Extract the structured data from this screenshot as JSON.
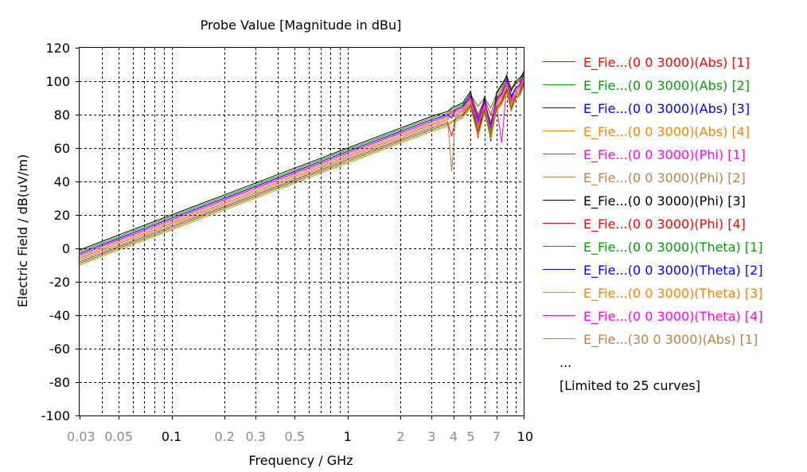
{
  "chart_data": {
    "type": "line",
    "title": "Probe Value [Magnitude in dBu]",
    "xlabel": "Frequency / GHz",
    "ylabel": "Electric Field / dB(uV/m)",
    "x_scale": "log",
    "xlim": [
      0.03,
      10
    ],
    "ylim": [
      -100,
      120
    ],
    "grid": true,
    "legend_position": "right",
    "y_ticks": [
      120,
      100,
      80,
      60,
      40,
      20,
      0,
      -20,
      -40,
      -60,
      -80,
      -100
    ],
    "x_ticks": [
      {
        "value": 0.03,
        "label": "0.03",
        "major": false
      },
      {
        "value": 0.05,
        "label": "0.05",
        "major": false
      },
      {
        "value": 0.1,
        "label": "0.1",
        "major": true
      },
      {
        "value": 0.2,
        "label": "0.2",
        "major": false
      },
      {
        "value": 0.3,
        "label": "0.3",
        "major": false
      },
      {
        "value": 0.5,
        "label": "0.5",
        "major": false
      },
      {
        "value": 1,
        "label": "1",
        "major": true
      },
      {
        "value": 2,
        "label": "2",
        "major": false
      },
      {
        "value": 3,
        "label": "3",
        "major": false
      },
      {
        "value": 4,
        "label": "4",
        "major": false
      },
      {
        "value": 5,
        "label": "5",
        "major": false
      },
      {
        "value": 7,
        "label": "7",
        "major": false
      },
      {
        "value": 10,
        "label": "10",
        "major": true
      }
    ],
    "x_minor_gridlines": [
      0.04,
      0.06,
      0.07,
      0.08,
      0.09,
      0.4,
      0.6,
      0.7,
      0.8,
      0.9,
      6,
      8,
      9
    ],
    "x": [
      0.03,
      0.05,
      0.1,
      0.2,
      0.5,
      1,
      2,
      3,
      3.7,
      3.9,
      4.1,
      4.5,
      5,
      5.5,
      6,
      6.5,
      7,
      7.5,
      8,
      8.5,
      9,
      9.5,
      10
    ],
    "series": [
      {
        "name": "E_Fie...(0 0 3000)(Abs) [1]",
        "color": "#ff0000",
        "values": [
          -3,
          6,
          18,
          30,
          46,
          58,
          70,
          77,
          80,
          82,
          83,
          85,
          93,
          80,
          89,
          80,
          90,
          95,
          104,
          95,
          98,
          100,
          106
        ]
      },
      {
        "name": "E_Fie...(0 0 3000)(Abs) [2]",
        "color": "#00a000",
        "values": [
          -2,
          7,
          19,
          31,
          47,
          59,
          71,
          78,
          81,
          83,
          84,
          86,
          92,
          85,
          90,
          84,
          92,
          97,
          102,
          96,
          99,
          101,
          104
        ]
      },
      {
        "name": "E_Fie...(0 0 3000)(Abs) [3]",
        "color": "#0000ff",
        "values": [
          -4,
          5,
          17,
          29,
          45,
          57,
          69,
          76,
          79,
          81,
          82,
          84,
          90,
          76,
          87,
          72,
          88,
          92,
          100,
          90,
          95,
          97,
          103
        ]
      },
      {
        "name": "E_Fie...(0 0 3000)(Abs) [4]",
        "color": "#ff8000",
        "values": [
          -5,
          4,
          16,
          28,
          44,
          56,
          68,
          75,
          78,
          80,
          81,
          83,
          89,
          78,
          86,
          76,
          87,
          91,
          99,
          92,
          94,
          96,
          102
        ]
      },
      {
        "name": "E_Fie...(0 0 3000)(Phi) [1]",
        "color": "#ff00ff",
        "values": [
          -6,
          3,
          15,
          27,
          43,
          55,
          67,
          74,
          77,
          79,
          80,
          82,
          88,
          74,
          85,
          70,
          86,
          63,
          97,
          88,
          93,
          95,
          101
        ]
      },
      {
        "name": "E_Fie...(0 0 3000)(Phi) [2]",
        "color": "#c08040",
        "values": [
          -7,
          2,
          14,
          26,
          42,
          54,
          66,
          73,
          76,
          46,
          79,
          81,
          87,
          72,
          84,
          68,
          85,
          89,
          96,
          86,
          92,
          94,
          100
        ]
      },
      {
        "name": "E_Fie...(0 0 3000)(Phi) [3]",
        "color": "#000000",
        "values": [
          -1,
          8,
          20,
          32,
          48,
          60,
          72,
          79,
          82,
          84,
          85,
          87,
          94,
          66,
          91,
          64,
          93,
          98,
          103,
          94,
          100,
          102,
          105
        ]
      },
      {
        "name": "E_Fie...(0 0 3000)(Phi) [4]",
        "color": "#ff0000",
        "values": [
          -8,
          1,
          13,
          25,
          41,
          53,
          65,
          72,
          75,
          67,
          78,
          80,
          86,
          70,
          83,
          66,
          84,
          88,
          95,
          84,
          91,
          93,
          99
        ]
      },
      {
        "name": "E_Fie...(0 0 3000)(Theta) [1]",
        "color": "#00a000",
        "values": [
          -9,
          0,
          12,
          24,
          40,
          52,
          64,
          71,
          74,
          76,
          77,
          79,
          85,
          68,
          82,
          67,
          83,
          87,
          94,
          83,
          90,
          92,
          98
        ]
      },
      {
        "name": "E_Fie...(0 0 3000)(Theta) [2]",
        "color": "#0000ff",
        "values": [
          -3,
          6,
          18,
          30,
          46,
          58,
          70,
          77,
          80,
          78,
          83,
          85,
          91,
          78,
          88,
          74,
          89,
          93,
          101,
          91,
          96,
          98,
          104
        ]
      },
      {
        "name": "E_Fie...(0 0 3000)(Theta) [3]",
        "color": "#ff8000",
        "values": [
          -10,
          -1,
          11,
          23,
          39,
          51,
          63,
          70,
          73,
          75,
          76,
          78,
          84,
          67,
          81,
          65,
          82,
          86,
          93,
          82,
          89,
          91,
          97
        ]
      },
      {
        "name": "E_Fie...(0 0 3000)(Theta) [4]",
        "color": "#ff00ff",
        "values": [
          -4,
          5,
          17,
          29,
          45,
          57,
          69,
          76,
          79,
          81,
          82,
          84,
          90,
          75,
          87,
          71,
          88,
          92,
          100,
          89,
          95,
          97,
          103
        ]
      },
      {
        "name": "E_Fie...(30 0 3000)(Abs) [1]",
        "color": "#c08040",
        "values": [
          -6,
          3,
          15,
          27,
          43,
          55,
          67,
          74,
          77,
          79,
          80,
          82,
          88,
          73,
          85,
          69,
          86,
          90,
          98,
          87,
          93,
          95,
          101
        ]
      }
    ],
    "legend_extra": [
      "...",
      "[Limited to 25 curves]"
    ]
  }
}
